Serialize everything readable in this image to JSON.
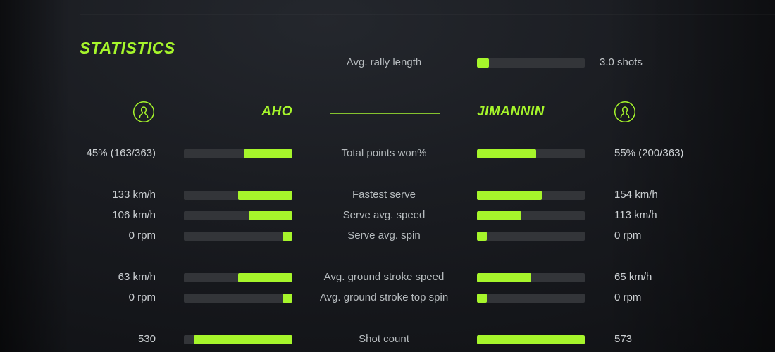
{
  "title": "STATISTICS",
  "colors": {
    "accent": "#a6f52b",
    "bar_track": "#333539",
    "value_text": "#ccd0d3",
    "label_text": "#b6bbbe"
  },
  "rally": {
    "label": "Avg. rally length",
    "value": "3.0 shots",
    "fill_pct": 11
  },
  "players": {
    "left": {
      "name": "AHO",
      "icon": "person-circle-icon"
    },
    "right": {
      "name": "JIMANNIN",
      "icon": "person-circle-icon"
    }
  },
  "rows": [
    {
      "label": "Total points won%",
      "left_value": "45% (163/363)",
      "left_pct": 45,
      "right_value": "55% (200/363)",
      "right_pct": 55
    },
    {
      "label": "Fastest serve",
      "left_value": "133 km/h",
      "left_pct": 50,
      "right_value": "154 km/h",
      "right_pct": 60
    },
    {
      "label": "Serve avg. speed",
      "left_value": "106 km/h",
      "left_pct": 40,
      "right_value": "113 km/h",
      "right_pct": 41
    },
    {
      "label": "Serve avg. spin",
      "left_value": "0 rpm",
      "left_pct": 9,
      "right_value": "0 rpm",
      "right_pct": 9
    },
    {
      "label": "Avg. ground stroke speed",
      "left_value": "63 km/h",
      "left_pct": 50,
      "right_value": "65 km/h",
      "right_pct": 50
    },
    {
      "label": "Avg. ground stroke top spin",
      "left_value": "0 rpm",
      "left_pct": 9,
      "right_value": "0 rpm",
      "right_pct": 9
    },
    {
      "label": "Shot count",
      "left_value": "530",
      "left_pct": 91,
      "right_value": "573",
      "right_pct": 100
    }
  ]
}
